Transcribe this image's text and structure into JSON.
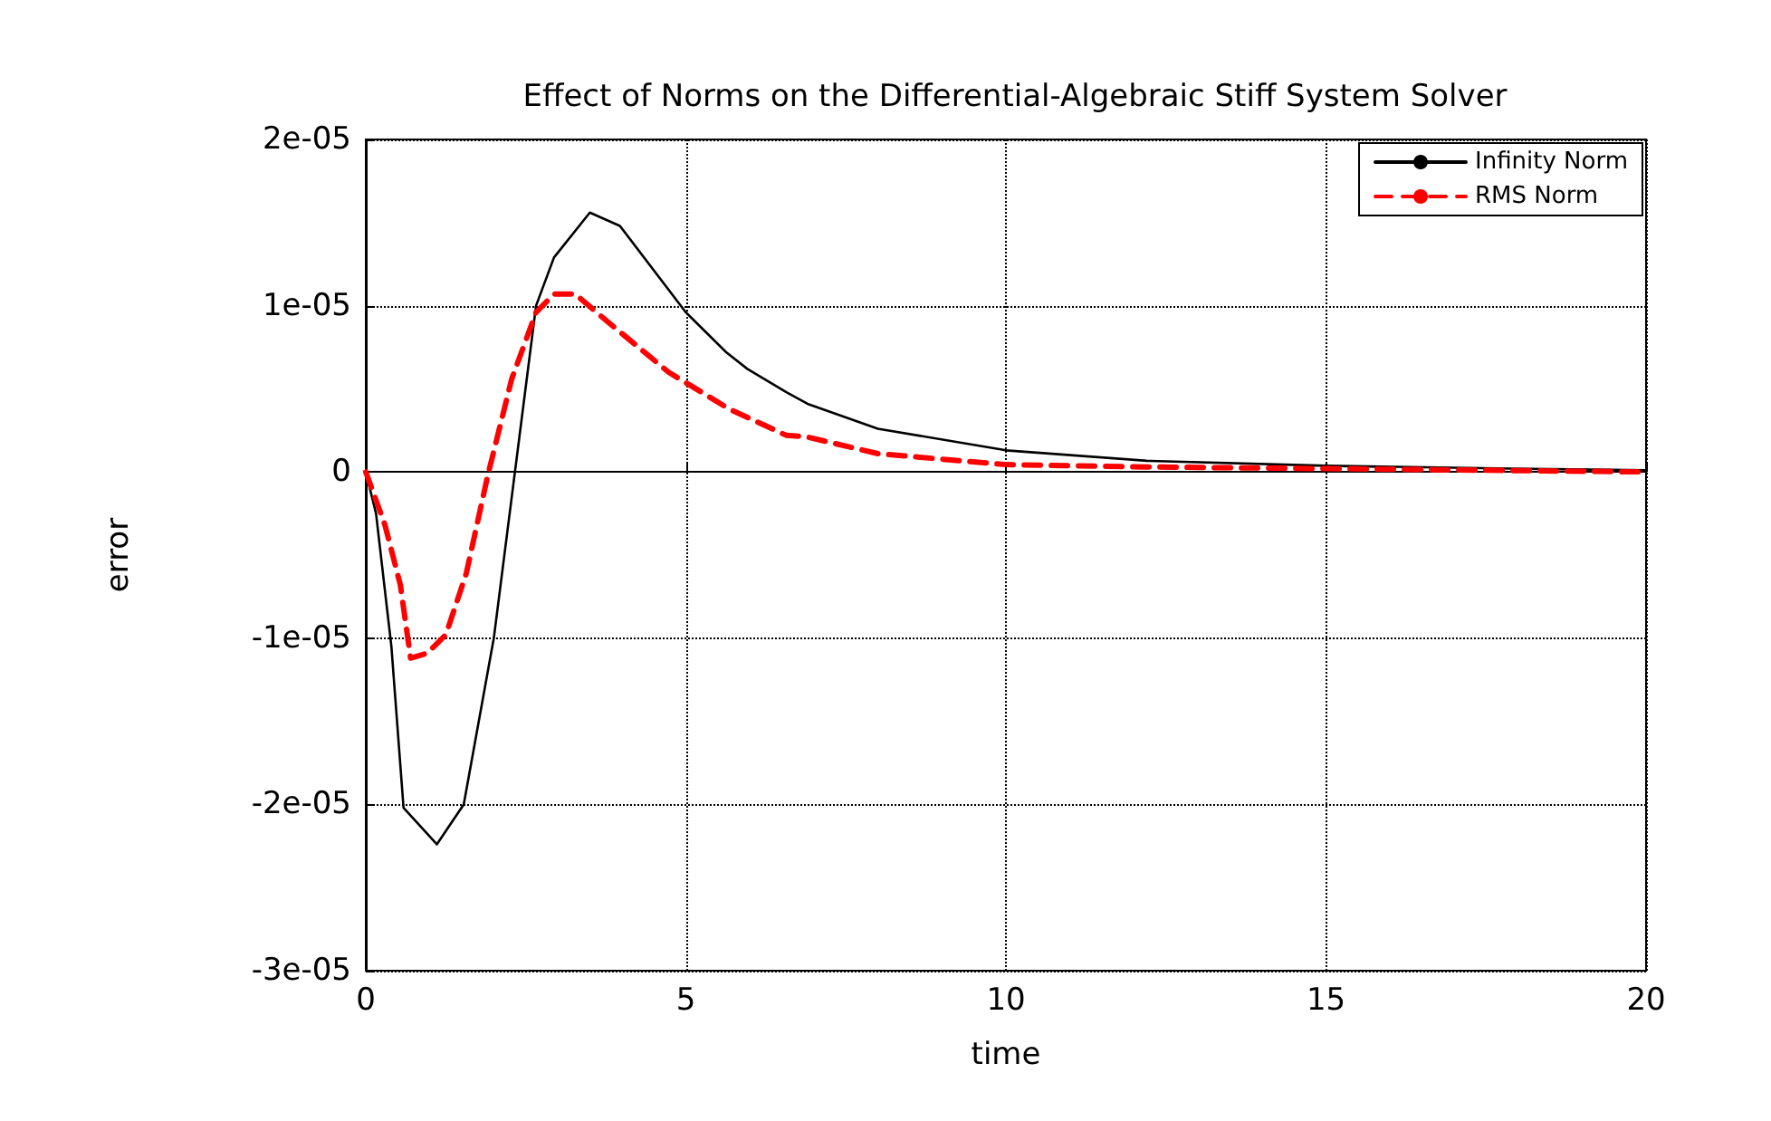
{
  "chart_data": {
    "type": "line",
    "title": "Effect of Norms on the Differential-Algebraic Stiff System Solver",
    "xlabel": "time",
    "ylabel": "error",
    "xlim": [
      0,
      20
    ],
    "xticks": [
      0,
      5,
      10,
      15,
      20
    ],
    "ylim": [
      -3e-05,
      2e-05
    ],
    "yticks": [
      {
        "value": -3e-05,
        "label": "-3e-05"
      },
      {
        "value": -2e-05,
        "label": "-2e-05"
      },
      {
        "value": -1e-05,
        "label": "-1e-05"
      },
      {
        "value": 0,
        "label": "0"
      },
      {
        "value": 1e-05,
        "label": "1e-05"
      },
      {
        "value": 2e-05,
        "label": "2e-05"
      }
    ],
    "grid": true,
    "legend": "top right",
    "marker": "none",
    "series": [
      {
        "name": "Infinity Norm",
        "color": "#000000",
        "line_style": "solid",
        "x": [
          0,
          0.16,
          0.4,
          0.59,
          1.11,
          1.53,
          2.0,
          2.33,
          2.66,
          2.94,
          3.5,
          3.97,
          5.0,
          5.63,
          5.96,
          6.57,
          6.9,
          8.0,
          10.0,
          12.2,
          15.0,
          17.9,
          20
        ],
        "values": [
          0,
          -2.5e-06,
          -1.05e-05,
          -2.02e-05,
          -2.24e-05,
          -2e-05,
          -1e-05,
          0,
          1e-05,
          1.29e-05,
          1.56e-05,
          1.48e-05,
          9.6e-06,
          7.2e-06,
          6.2e-06,
          4.8e-06,
          4.1e-06,
          2.6e-06,
          1.3e-06,
          6.7e-07,
          3.7e-07,
          2e-07,
          1e-07
        ]
      },
      {
        "name": "RMS Norm",
        "color": "#ff0000",
        "line_style": "dashed",
        "x": [
          0,
          0.3,
          0.54,
          0.7,
          0.96,
          1.25,
          1.57,
          1.9,
          2.28,
          2.66,
          2.94,
          3.27,
          3.79,
          4.73,
          5.67,
          6.57,
          6.9,
          8.0,
          10.0,
          12.2,
          15.0,
          20
        ],
        "values": [
          0,
          -3.2e-06,
          -6.8e-06,
          -1.12e-05,
          -1.09e-05,
          -9.8e-06,
          -6.1e-06,
          -3e-07,
          5.6e-06,
          9.6e-06,
          1.07e-05,
          1.07e-05,
          9e-06,
          6e-06,
          3.8e-06,
          2.2e-06,
          2.1e-06,
          1.1e-06,
          4.4e-07,
          3e-07,
          2e-07,
          0
        ]
      }
    ]
  }
}
